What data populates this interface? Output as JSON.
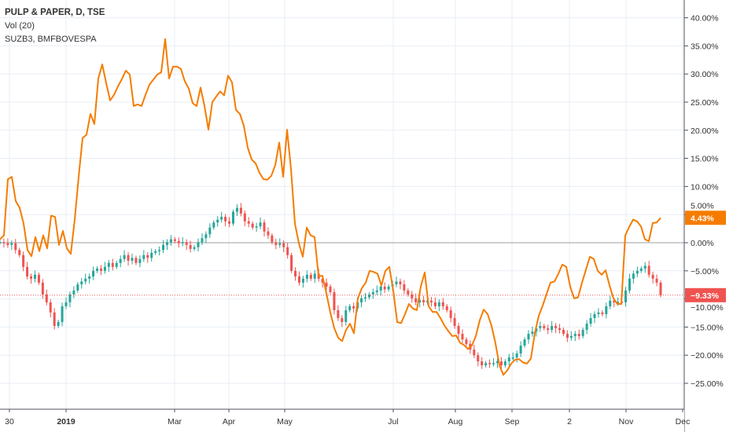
{
  "legend": {
    "main_series": "PULP & PAPER, D, TSE",
    "indicator": "Vol (20)",
    "compare_series": "SUZB3, BMFBOVESPA"
  },
  "colors": {
    "compare_line": "#f57c00",
    "up_candle": "#26a69a",
    "down_candle": "#ef5350",
    "last_price_line": "#ef5350",
    "zero_line": "#9e9e9e",
    "grid": "#e8eef4"
  },
  "chart_data": {
    "type": "line",
    "title": "",
    "ylabel": "",
    "xlabel": "",
    "y_unit": "%",
    "ylim": [
      -28,
      44
    ],
    "y_ticks": [
      "40.00%",
      "35.00%",
      "30.00%",
      "25.00%",
      "20.00%",
      "15.00%",
      "10.00%",
      "5.00%",
      "0.00%",
      "−5.00%",
      "−10.00%",
      "−15.00%",
      "−20.00%",
      "−25.00%"
    ],
    "y_tick_values": [
      40,
      35,
      30,
      25,
      20,
      15,
      10,
      5,
      0,
      -5,
      -10,
      -15,
      -20,
      -25
    ],
    "x_ticks": [
      {
        "label": "30",
        "bold": false
      },
      {
        "label": "2019",
        "bold": true
      },
      {
        "label": "Mar",
        "bold": false
      },
      {
        "label": "Apr",
        "bold": false
      },
      {
        "label": "May",
        "bold": false
      },
      {
        "label": "Jul",
        "bold": false
      },
      {
        "label": "Aug",
        "bold": false
      },
      {
        "label": "Sep",
        "bold": false
      },
      {
        "label": "2",
        "bold": false
      },
      {
        "label": "Nov",
        "bold": false
      },
      {
        "label": "Dec",
        "bold": false
      }
    ],
    "grid": true,
    "series": [
      {
        "name": "PULP & PAPER, D, TSE",
        "style": "candles",
        "last_value_label": "−9.33%",
        "values": [
          0.1,
          -0.1,
          -0.4,
          -0.1,
          -1.3,
          -2.2,
          -4.3,
          -6.0,
          -6.4,
          -5.7,
          -7.1,
          -9.2,
          -10.6,
          -12.4,
          -14.8,
          -14.1,
          -11.3,
          -10.6,
          -9.2,
          -8.5,
          -7.4,
          -6.9,
          -6.4,
          -6.0,
          -5.0,
          -4.6,
          -5.0,
          -4.3,
          -3.6,
          -4.3,
          -3.6,
          -2.9,
          -2.2,
          -3.2,
          -2.7,
          -3.6,
          -2.9,
          -2.2,
          -2.7,
          -1.8,
          -1.5,
          -1.3,
          -0.4,
          0.1,
          0.6,
          0.3,
          -0.1,
          0.1,
          -0.4,
          -1.1,
          -0.8,
          0.1,
          0.8,
          1.5,
          2.7,
          3.6,
          4.1,
          4.6,
          3.8,
          3.4,
          5.5,
          6.2,
          5.2,
          3.8,
          3.4,
          2.7,
          2.9,
          3.6,
          2.0,
          1.3,
          0.1,
          -0.4,
          -0.1,
          -0.8,
          -2.2,
          -5.0,
          -6.0,
          -7.1,
          -6.4,
          -5.7,
          -6.4,
          -5.5,
          -6.4,
          -7.1,
          -7.8,
          -8.8,
          -12.0,
          -13.4,
          -14.1,
          -12.0,
          -11.3,
          -11.7,
          -10.6,
          -9.9,
          -9.7,
          -9.2,
          -8.8,
          -8.5,
          -7.8,
          -8.3,
          -7.8,
          -7.4,
          -6.9,
          -7.4,
          -8.5,
          -9.2,
          -9.9,
          -10.6,
          -10.2,
          -10.6,
          -10.3,
          -10.6,
          -11.3,
          -10.6,
          -11.3,
          -12.0,
          -13.4,
          -14.8,
          -16.2,
          -17.2,
          -18.0,
          -19.0,
          -20.0,
          -21.1,
          -21.8,
          -21.4,
          -21.5,
          -21.4,
          -21.1,
          -21.8,
          -21.1,
          -20.4,
          -20.4,
          -19.7,
          -18.3,
          -17.2,
          -16.2,
          -15.8,
          -15.2,
          -14.8,
          -15.2,
          -15.5,
          -14.8,
          -15.2,
          -15.5,
          -16.2,
          -16.9,
          -16.6,
          -16.2,
          -16.6,
          -15.5,
          -14.4,
          -13.4,
          -12.7,
          -12.4,
          -12.7,
          -11.3,
          -10.3,
          -10.6,
          -10.5,
          -10.6,
          -8.5,
          -6.4,
          -5.5,
          -5.0,
          -4.6,
          -4.1,
          -5.7,
          -6.4,
          -7.1,
          -9.33
        ]
      },
      {
        "name": "SUZB3, BMFBOVESPA",
        "style": "line",
        "last_value_label": "4.43%",
        "values": [
          0.6,
          1.3,
          11.3,
          11.7,
          7.4,
          6.2,
          3.4,
          -1.3,
          -2.4,
          1.0,
          -1.5,
          1.3,
          -1.0,
          4.8,
          4.6,
          -0.4,
          2.1,
          -1.0,
          -2.0,
          4.1,
          11.7,
          18.6,
          19.2,
          22.9,
          21.1,
          29.2,
          31.7,
          28.4,
          25.3,
          26.3,
          27.8,
          29.1,
          30.6,
          29.9,
          24.3,
          24.6,
          24.3,
          26.3,
          28.1,
          29.0,
          29.9,
          30.3,
          36.2,
          29.2,
          31.3,
          31.3,
          30.9,
          28.7,
          27.4,
          24.8,
          24.3,
          27.6,
          24.3,
          20.1,
          25.0,
          26.0,
          26.9,
          26.2,
          29.7,
          28.5,
          23.6,
          22.9,
          20.8,
          16.9,
          14.8,
          14.1,
          12.4,
          11.3,
          11.2,
          11.9,
          13.8,
          17.8,
          11.7,
          20.1,
          13.1,
          3.4,
          -0.1,
          -2.5,
          2.7,
          1.3,
          1.0,
          -5.9,
          -5.9,
          -9.0,
          -12.4,
          -15.2,
          -16.9,
          -17.5,
          -15.5,
          -14.4,
          -16.1,
          -9.9,
          -8.1,
          -7.1,
          -5.0,
          -5.2,
          -5.5,
          -7.6,
          -5.0,
          -4.3,
          -8.5,
          -14.1,
          -14.3,
          -12.7,
          -10.9,
          -11.7,
          -12.0,
          -7.8,
          -5.3,
          -11.3,
          -12.3,
          -12.3,
          -13.4,
          -14.7,
          -15.7,
          -16.6,
          -16.5,
          -17.8,
          -18.2,
          -18.9,
          -18.3,
          -16.6,
          -13.8,
          -11.9,
          -12.7,
          -14.8,
          -17.9,
          -21.8,
          -23.5,
          -22.7,
          -21.5,
          -20.8,
          -20.7,
          -21.3,
          -21.5,
          -20.6,
          -16.1,
          -13.0,
          -11.2,
          -9.1,
          -7.1,
          -6.9,
          -5.5,
          -3.9,
          -4.3,
          -7.8,
          -9.9,
          -9.7,
          -7.1,
          -4.8,
          -2.5,
          -2.9,
          -5.0,
          -5.7,
          -4.9,
          -7.6,
          -9.9,
          -10.9,
          -10.9,
          1.3,
          2.8,
          4.1,
          3.8,
          2.9,
          0.6,
          0.3,
          3.5,
          3.6,
          4.43
        ]
      }
    ]
  }
}
